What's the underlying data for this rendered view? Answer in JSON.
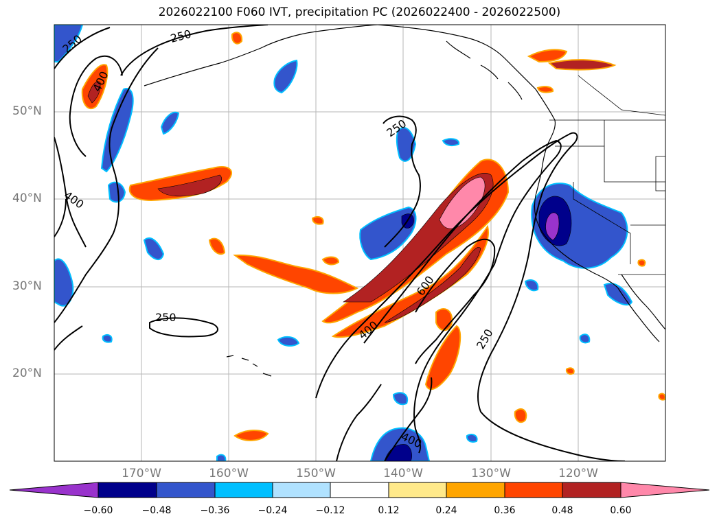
{
  "title": "2026022100 F060 IVT, precipitation PC (2026022400 - 2026022500)",
  "lat_labels": [
    "50°N",
    "40°N",
    "30°N",
    "20°N"
  ],
  "lon_labels": [
    "170°W",
    "160°W",
    "150°W",
    "140°W",
    "130°W",
    "120°W"
  ],
  "contour_labels": [
    "250",
    "250",
    "400",
    "400",
    "250",
    "250",
    "400",
    "600",
    "250",
    "400"
  ],
  "colorbar": {
    "ticks": [
      "−0.60",
      "−0.48",
      "−0.36",
      "−0.24",
      "−0.12",
      "0.12",
      "0.24",
      "0.36",
      "0.48",
      "0.60"
    ],
    "colors": [
      "#9933cc",
      "#00008b",
      "#3355cc",
      "#00bfff",
      "#b0e2ff",
      "#ffffff",
      "#ffe98a",
      "#ffa500",
      "#ff4500",
      "#b22222",
      "#ff88aa"
    ]
  }
}
